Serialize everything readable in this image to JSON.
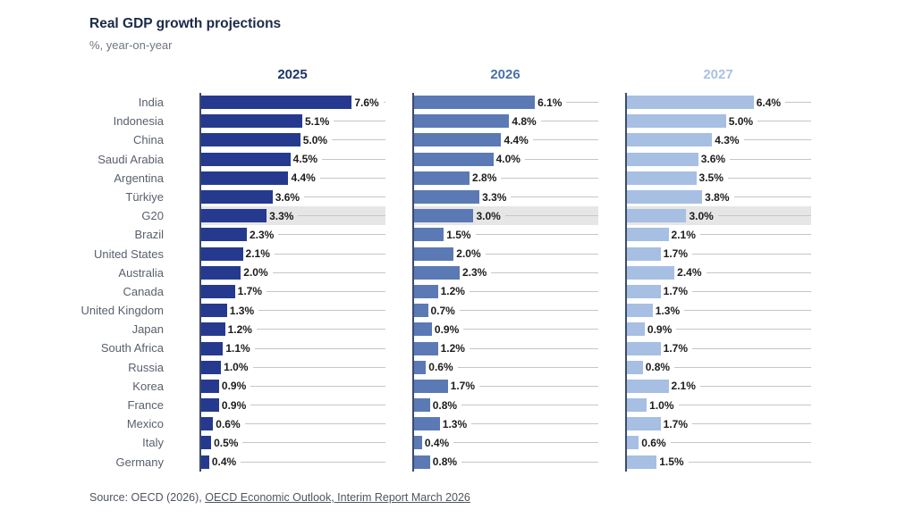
{
  "header": {
    "title": "Real GDP growth projections",
    "subtitle": "%, year-on-year"
  },
  "colors": {
    "title_text": "#1b2a49",
    "category_label_text": "#59606c",
    "value_label_text": "#1c1c1c",
    "axis_line": "#3b4a70",
    "leader_line": "#c6c6c6",
    "highlight_band": "#e6e6e6"
  },
  "chart_data": {
    "type": "bar",
    "orientation": "horizontal",
    "title": "Real GDP growth projections",
    "subtitle": "%, year-on-year",
    "value_suffix": "%",
    "xlim": [
      0,
      9.3
    ],
    "grid": false,
    "highlighted_category": "G20",
    "categories": [
      "India",
      "Indonesia",
      "China",
      "Saudi Arabia",
      "Argentina",
      "Türkiye",
      "G20",
      "Brazil",
      "United States",
      "Australia",
      "Canada",
      "United Kingdom",
      "Japan",
      "South Africa",
      "Russia",
      "Korea",
      "France",
      "Mexico",
      "Italy",
      "Germany"
    ],
    "series": [
      {
        "name": "2025",
        "color": "#253a8e",
        "header_color": "#1b3566",
        "values": [
          7.6,
          5.1,
          5.0,
          4.5,
          4.4,
          3.6,
          3.3,
          2.3,
          2.1,
          2.0,
          1.7,
          1.3,
          1.2,
          1.1,
          1.0,
          0.9,
          0.9,
          0.6,
          0.5,
          0.4
        ]
      },
      {
        "name": "2026",
        "color": "#5b79b4",
        "header_color": "#4a70ad",
        "values": [
          6.1,
          4.8,
          4.4,
          4.0,
          2.8,
          3.3,
          3.0,
          1.5,
          2.0,
          2.3,
          1.2,
          0.7,
          0.9,
          1.2,
          0.6,
          1.7,
          0.8,
          1.3,
          0.4,
          0.8
        ]
      },
      {
        "name": "2027",
        "color": "#a6bfe2",
        "header_color": "#a9c2e3",
        "values": [
          6.4,
          5.0,
          4.3,
          3.6,
          3.5,
          3.8,
          3.0,
          2.1,
          1.7,
          2.4,
          1.7,
          1.3,
          0.9,
          1.7,
          0.8,
          2.1,
          1.0,
          1.7,
          0.6,
          1.5
        ]
      }
    ]
  },
  "footer": {
    "source_prefix": "Source: OECD (2026), ",
    "source_link": "OECD Economic Outlook, Interim Report March 2026"
  }
}
